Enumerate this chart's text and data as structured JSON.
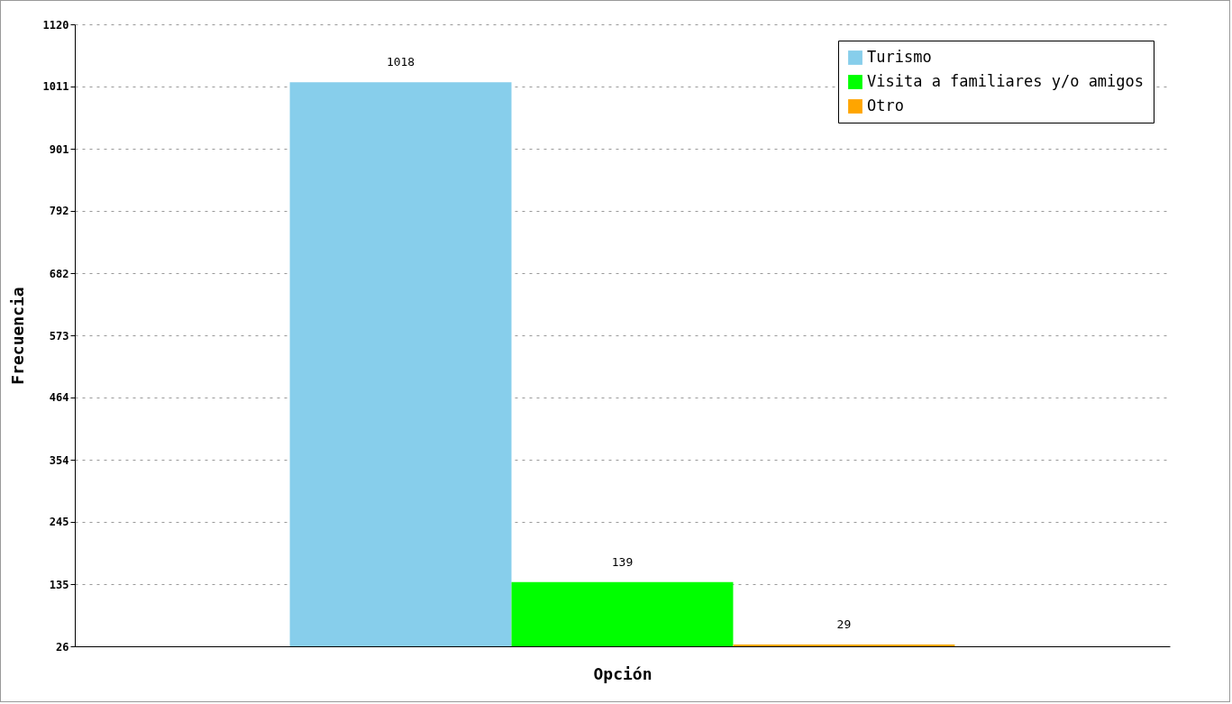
{
  "chart_data": {
    "type": "bar",
    "xlabel": "Opción",
    "ylabel": "Frecuencia",
    "categories": [
      null,
      null,
      null
    ],
    "series": [
      {
        "name": "Turismo",
        "color": "#87ceeb",
        "values": [
          1018,
          null,
          null
        ]
      },
      {
        "name": "Visita a familiares y/o amigos",
        "color": "#00ff00",
        "values": [
          null,
          139,
          null
        ]
      },
      {
        "name": "Otro",
        "color": "#ffa500",
        "values": [
          null,
          null,
          29
        ]
      }
    ],
    "ylim": [
      26,
      1120
    ],
    "yticks": [
      26,
      135,
      245,
      354,
      464,
      573,
      682,
      792,
      901,
      1011,
      1120
    ],
    "grid": "y",
    "legend": "top right",
    "data_labels": true
  }
}
